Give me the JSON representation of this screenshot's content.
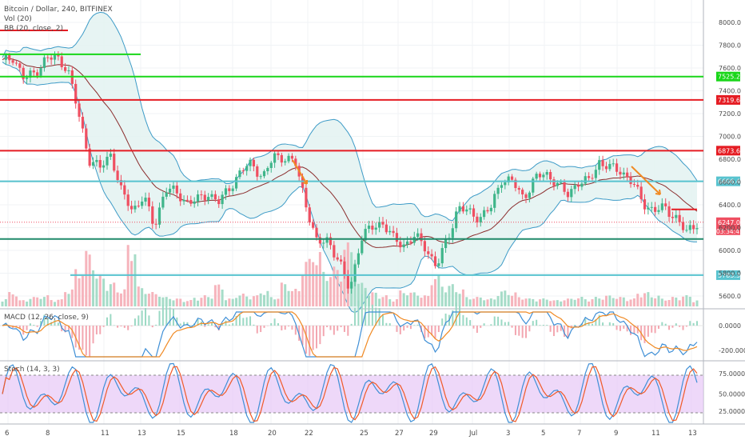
{
  "header": {
    "symbol": "Bitcoin / Dollar, 240, BITFINEX",
    "vol_label": "Vol (20)",
    "bb_label": "BB (20, close, 2)"
  },
  "macd": {
    "label": "MACD (12, 26, close, 9)"
  },
  "stoch": {
    "label": "Stoch (14, 3, 3)"
  },
  "colors": {
    "up": "#3fb58a",
    "down": "#ef4f61",
    "bb_band": "#3d9bc7",
    "bb_fill": "#e3f2f1",
    "bb_mid": "#8b2d2d",
    "red_line": "#e51c23",
    "green_line": "#19d619",
    "cyan_line": "#58c3cf",
    "teal_line": "#208a6a",
    "arrow": "#f08a24",
    "macd_line": "#3f8fd6",
    "signal_line": "#f08a24",
    "stoch_fill": "#e7c8f7",
    "stoch_k": "#3f8fd6",
    "stoch_d": "#f05a28"
  },
  "price_axis": {
    "ticks": [
      "8000.0",
      "7800.0",
      "7600.0",
      "7400.0",
      "7200.0",
      "7000.0",
      "6800.0",
      "6600.0",
      "6400.0",
      "6200.0",
      "6000.0",
      "5800.0",
      "5600.0"
    ]
  },
  "macd_axis": {
    "ticks": [
      "0.0000",
      "-200.0000"
    ]
  },
  "stoch_axis": {
    "ticks": [
      "75.0000",
      "50.0000",
      "25.0000"
    ]
  },
  "time_axis": {
    "labels": [
      "6",
      "8",
      "11",
      "13",
      "15",
      "18",
      "20",
      "22",
      "25",
      "27",
      "29",
      "Jul",
      "3",
      "5",
      "7",
      "9",
      "11",
      "13"
    ]
  },
  "horizontal_levels": [
    {
      "price": 7930,
      "label": "",
      "color": "#e51c23",
      "span": "short-left"
    },
    {
      "price": 7720,
      "label": "",
      "color": "#19d619",
      "span": "short-left"
    },
    {
      "price": 7525,
      "label": "7525.2",
      "color": "#19d619",
      "span": "full"
    },
    {
      "price": 7320,
      "label": "7319.6",
      "color": "#e51c23",
      "span": "full"
    },
    {
      "price": 6875,
      "label": "6873.6",
      "color": "#e51c23",
      "span": "full"
    },
    {
      "price": 6606,
      "label": "6606.4",
      "color": "#58c3cf",
      "span": "full"
    },
    {
      "price": 6100,
      "label": "",
      "color": "#208a6a",
      "span": "full"
    },
    {
      "price": 5783,
      "label": "5783.3",
      "color": "#58c3cf",
      "span": "from-mid"
    }
  ],
  "current_price": {
    "value": "6247.0",
    "countdown": "03:34:41"
  },
  "chart_data": {
    "type": "candlestick",
    "price_anchor": [
      7650,
      7700,
      7500,
      7560,
      7680,
      7690,
      7600,
      7200,
      6800,
      6720,
      6850,
      6500,
      6350,
      6480,
      6200,
      6550,
      6500,
      6430,
      6440,
      6500,
      6420,
      6560,
      6700,
      6760,
      6640,
      6820,
      6820,
      6760,
      6400,
      6050,
      6100,
      5900,
      5650,
      6100,
      6200,
      6250,
      6100,
      6050,
      6120,
      6030,
      5850,
      6100,
      6380,
      6330,
      6290,
      6370,
      6630,
      6600,
      6460,
      6620,
      6680,
      6600,
      6480,
      6600,
      6600,
      6780,
      6720,
      6700,
      6600,
      6420,
      6350,
      6370,
      6300,
      6150,
      6247
    ],
    "volume_anchor": [
      10,
      18,
      8,
      12,
      14,
      9,
      22,
      48,
      70,
      40,
      30,
      22,
      80,
      25,
      18,
      12,
      10,
      8,
      12,
      14,
      28,
      10,
      16,
      14,
      20,
      12,
      30,
      22,
      60,
      70,
      45,
      50,
      80,
      30,
      18,
      14,
      10,
      20,
      18,
      14,
      40,
      28,
      22,
      12,
      12,
      10,
      20,
      18,
      12,
      10,
      10,
      8,
      10,
      12,
      10,
      12,
      14,
      12,
      10,
      18,
      14,
      10,
      12,
      14,
      8
    ]
  }
}
